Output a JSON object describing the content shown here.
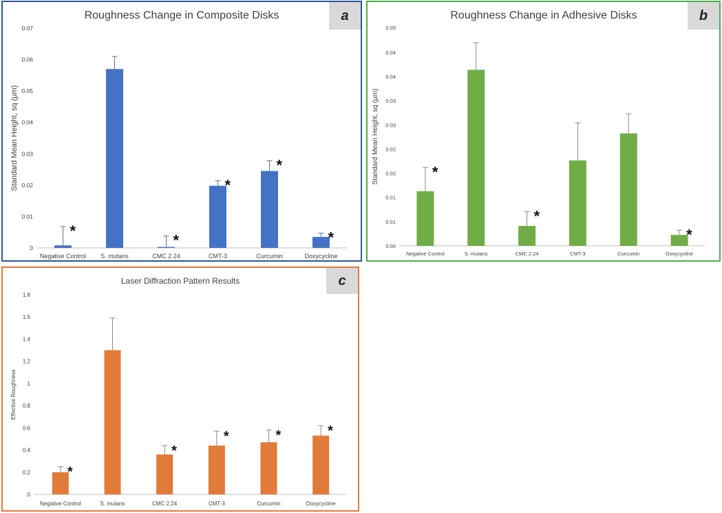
{
  "chart_data": [
    {
      "type": "bar",
      "panel": "a",
      "title": "Roughness Change in Composite Disks",
      "xlabel": "",
      "ylabel": "Standard Mean Height, sq (µm)",
      "categories": [
        "Negative Control",
        "S. mutans",
        "CMC 2.24",
        "CMT-3",
        "Curcumin",
        "Doxycycline"
      ],
      "values": [
        0.0008,
        0.057,
        0.0003,
        0.0198,
        0.0245,
        0.0035
      ],
      "errors": [
        0.006,
        0.004,
        0.0035,
        0.0016,
        0.0033,
        0.0012
      ],
      "significant": [
        true,
        false,
        true,
        true,
        true,
        true
      ],
      "ylim": [
        0,
        0.07
      ],
      "yticks": [
        0,
        0.01,
        0.02,
        0.03,
        0.04,
        0.05,
        0.06,
        0.07
      ],
      "ytick_labels": [
        "0",
        "0.01",
        "0.02",
        "0.03",
        "0.04",
        "0.05",
        "0.06",
        "0.07"
      ],
      "color": "#4472c4",
      "grid": false,
      "legend": "none"
    },
    {
      "type": "bar",
      "panel": "b",
      "title": "Roughness Change in Adhesive Disks",
      "xlabel": "",
      "ylabel": "Standard Mean Height, sq (µm)",
      "categories": [
        "Negative Control",
        "S. mutans",
        "CMC 2.24",
        "CMT-3",
        "Curcumin",
        "Doxycycline"
      ],
      "values": [
        0.0115,
        0.0371,
        0.0042,
        0.018,
        0.0237,
        0.0023
      ],
      "errors": [
        0.005,
        0.0057,
        0.003,
        0.0079,
        0.0041,
        0.001
      ],
      "significant": [
        true,
        false,
        true,
        false,
        false,
        true
      ],
      "ylim": [
        0,
        0.046
      ],
      "yticks": [
        0,
        0.0051,
        0.0102,
        0.0153,
        0.0204,
        0.0255,
        0.0306,
        0.0357,
        0.0408,
        0.046
      ],
      "ytick_labels": [
        "0.00",
        "0.01",
        "0.01",
        "0.02",
        "0.02",
        "0.03",
        "0.03",
        "0.04",
        "0.04",
        "0.05"
      ],
      "color": "#70ad47",
      "grid": false,
      "legend": "none"
    },
    {
      "type": "bar",
      "panel": "c",
      "title": "Laser Diffraction Pattern Results",
      "xlabel": "",
      "ylabel": "Effective Roughness",
      "categories": [
        "Negative Control",
        "S. mutans",
        "CMC 2.24",
        "CMT-3",
        "Curcumin",
        "Doxycycline"
      ],
      "values": [
        0.2,
        1.3,
        0.36,
        0.44,
        0.47,
        0.53
      ],
      "errors": [
        0.05,
        0.29,
        0.08,
        0.13,
        0.11,
        0.09
      ],
      "significant": [
        true,
        false,
        true,
        true,
        true,
        true
      ],
      "ylim": [
        0,
        1.8
      ],
      "yticks": [
        0,
        0.2,
        0.4,
        0.6,
        0.8,
        1,
        1.2,
        1.4,
        1.6,
        1.8
      ],
      "ytick_labels": [
        "0",
        "0.2",
        "0.4",
        "0.6",
        "0.8",
        "1",
        "1.2",
        "1.4",
        "1.6",
        "1.8"
      ],
      "color": "#e07b39",
      "grid": false,
      "legend": "none"
    }
  ],
  "panel_letters": [
    "a",
    "b",
    "c"
  ],
  "significance_marker": "*",
  "colors": {
    "frame_a": "#2f5496",
    "frame_b": "#4caf50",
    "frame_c": "#e07b39",
    "letter_bg": "#d9d9d9"
  }
}
